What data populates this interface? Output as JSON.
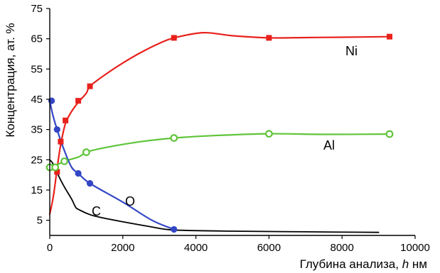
{
  "chart_data": {
    "type": "line",
    "xlabel_prefix": "Глубина анализа, ",
    "xlabel_var": "h",
    "xlabel_unit": " нм",
    "ylabel": "Концентрация, ат. %",
    "xlim": [
      0,
      10000
    ],
    "ylim": [
      0,
      75
    ],
    "x_ticks": [
      0,
      2000,
      4000,
      6000,
      8000,
      10000
    ],
    "y_ticks": [
      5,
      15,
      25,
      35,
      45,
      55,
      65,
      75
    ],
    "grid": false,
    "series": [
      {
        "name": "Ni",
        "color": "#e8211c",
        "marker": "square",
        "curve": [
          [
            0,
            7
          ],
          [
            100,
            13
          ],
          [
            200,
            22
          ],
          [
            300,
            30
          ],
          [
            430,
            37
          ],
          [
            600,
            41
          ],
          [
            780,
            44
          ],
          [
            1000,
            47
          ],
          [
            1100,
            49.3
          ],
          [
            1500,
            53
          ],
          [
            2000,
            57
          ],
          [
            2500,
            60.5
          ],
          [
            3000,
            63.5
          ],
          [
            3400,
            65.3
          ],
          [
            4200,
            67
          ],
          [
            5000,
            66
          ],
          [
            6000,
            65.3
          ],
          [
            7000,
            65.4
          ],
          [
            8000,
            65.5
          ],
          [
            9300,
            65.7
          ]
        ],
        "points": [
          [
            200,
            21
          ],
          [
            300,
            31
          ],
          [
            430,
            38
          ],
          [
            780,
            44.5
          ],
          [
            1100,
            49.3
          ],
          [
            3400,
            65.3
          ],
          [
            6000,
            65.3
          ],
          [
            9300,
            65.7
          ]
        ]
      },
      {
        "name": "Al",
        "color": "#5fc43a",
        "marker": "circle-open",
        "curve": [
          [
            0,
            22.5
          ],
          [
            150,
            23
          ],
          [
            400,
            24.5
          ],
          [
            800,
            26
          ],
          [
            1000,
            27.5
          ],
          [
            1500,
            29
          ],
          [
            2500,
            31
          ],
          [
            3400,
            32.2
          ],
          [
            4500,
            33
          ],
          [
            6000,
            33.6
          ],
          [
            7500,
            33.4
          ],
          [
            9300,
            33.5
          ]
        ],
        "points": [
          [
            0,
            22.5
          ],
          [
            150,
            22.5
          ],
          [
            400,
            24.5
          ],
          [
            1000,
            27.5
          ],
          [
            3400,
            32.2
          ],
          [
            6000,
            33.6
          ],
          [
            9300,
            33.5
          ]
        ]
      },
      {
        "name": "O",
        "color": "#3346c6",
        "marker": "circle",
        "curve": [
          [
            0,
            44.5
          ],
          [
            80,
            40
          ],
          [
            200,
            35
          ],
          [
            400,
            28
          ],
          [
            600,
            22.5
          ],
          [
            780,
            20.5
          ],
          [
            1100,
            17.2
          ],
          [
            2000,
            11
          ],
          [
            2800,
            5
          ],
          [
            3400,
            2
          ]
        ],
        "points": [
          [
            50,
            44.5
          ],
          [
            200,
            35
          ],
          [
            780,
            20.5
          ],
          [
            1100,
            17.2
          ],
          [
            3400,
            2
          ]
        ]
      },
      {
        "name": "C",
        "color": "#000000",
        "marker": "none",
        "curve": [
          [
            0,
            25
          ],
          [
            100,
            23.5
          ],
          [
            250,
            19.5
          ],
          [
            400,
            16
          ],
          [
            600,
            12
          ],
          [
            700,
            9.5
          ],
          [
            800,
            8.5
          ],
          [
            1200,
            6.5
          ],
          [
            2000,
            4.5
          ],
          [
            2800,
            2.8
          ],
          [
            3400,
            1.8
          ],
          [
            5000,
            1.4
          ],
          [
            7000,
            1.2
          ],
          [
            9000,
            1
          ]
        ],
        "points": []
      }
    ]
  }
}
